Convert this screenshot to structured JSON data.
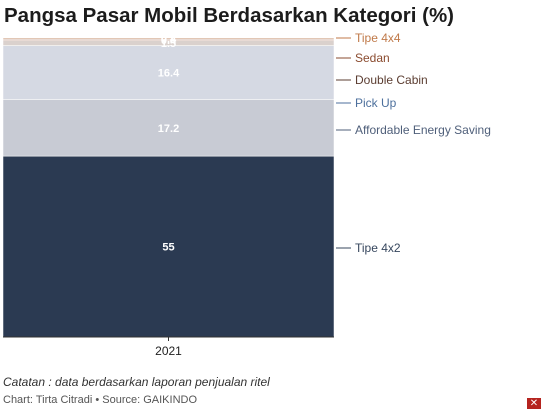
{
  "title": "Pangsa Pasar Mobil Berdasarkan Kategori (%)",
  "note": "Catatan : data berdasarkan laporan penjualan ritel",
  "credits": {
    "chart_label": "Chart:",
    "author": "Tirta Citradi",
    "separator": "•",
    "source_label": "Source:",
    "source": "GAIKINDO"
  },
  "brand_icon": "x-logo-icon",
  "chart_data": {
    "type": "bar",
    "stacked": true,
    "categories": [
      "2021"
    ],
    "ylim": [
      0,
      100
    ],
    "grid": false,
    "legend": "right, labels beside segments",
    "series": [
      {
        "name": "Tipe 4x2",
        "values": [
          55
        ],
        "color": "#2b3a52",
        "label_color": "#37475e"
      },
      {
        "name": "Affordable Energy Saving",
        "values": [
          17.2
        ],
        "color": "#c8cbd4",
        "label_color": "#4f5f7a"
      },
      {
        "name": "Pick Up",
        "values": [
          16.4
        ],
        "color": "#d5d9e3",
        "label_color": "#4c6f9c"
      },
      {
        "name": "Double Cabin",
        "values": [
          1.5
        ],
        "color": "#dad1cd",
        "label_color": "#5b3d31"
      },
      {
        "name": "Sedan",
        "values": [
          0.4
        ],
        "color": "#c8a899",
        "label_color": "#8a4b2f"
      },
      {
        "name": "Tipe 4x4",
        "values": [
          0.4
        ],
        "color": "#d9b49c",
        "label_color": "#c07a4a"
      }
    ]
  }
}
